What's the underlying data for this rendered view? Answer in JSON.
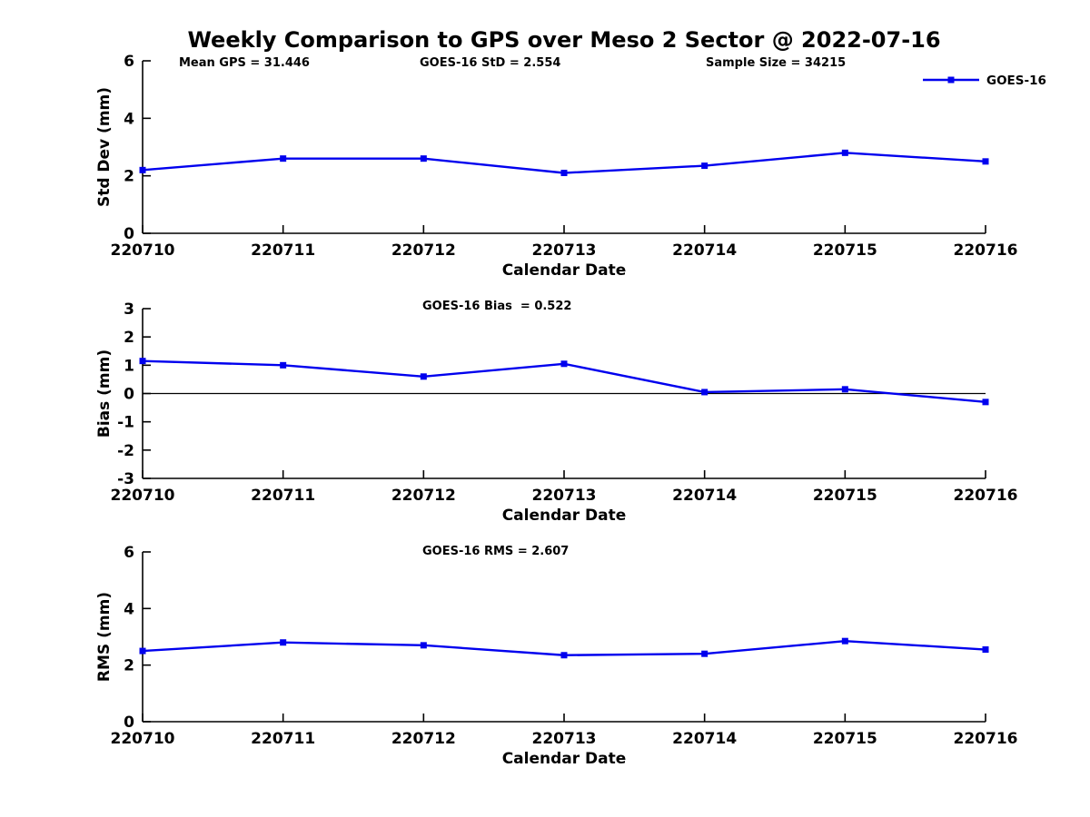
{
  "figure": {
    "title": "Weekly Comparison to GPS over Meso 2 Sector @ 2022-07-16",
    "background": "#ffffff",
    "line_color": "#0000EE",
    "axis_color": "#000000",
    "legend": {
      "label": "GOES-16"
    }
  },
  "chart_data": [
    {
      "type": "line",
      "name": "std-dev",
      "annotations": [
        "Mean GPS = 31.446",
        "GOES-16 StD = 2.554",
        "Sample Size = 34215"
      ],
      "categories": [
        "220710",
        "220711",
        "220712",
        "220713",
        "220714",
        "220715",
        "220716"
      ],
      "series": [
        {
          "name": "GOES-16",
          "values": [
            2.2,
            2.6,
            2.6,
            2.1,
            2.35,
            2.8,
            2.5
          ]
        }
      ],
      "xlabel": "Calendar Date",
      "ylabel": "Std Dev (mm)",
      "ylim": [
        0,
        6
      ],
      "yticks": [
        0,
        2,
        4,
        6
      ],
      "grid": false,
      "legend_entries": [
        "GOES-16"
      ],
      "legend_position": "top-right",
      "marker": "square"
    },
    {
      "type": "line",
      "name": "bias",
      "annotations": [
        "GOES-16 Bias  = 0.522"
      ],
      "categories": [
        "220710",
        "220711",
        "220712",
        "220713",
        "220714",
        "220715",
        "220716"
      ],
      "series": [
        {
          "name": "GOES-16",
          "values": [
            1.15,
            1.0,
            0.6,
            1.05,
            0.05,
            0.15,
            -0.3
          ]
        }
      ],
      "xlabel": "Calendar Date",
      "ylabel": "Bias (mm)",
      "ylim": [
        -3,
        3
      ],
      "yticks": [
        -3,
        -2,
        -1,
        0,
        1,
        2,
        3
      ],
      "grid": false,
      "zero_line": true,
      "marker": "square"
    },
    {
      "type": "line",
      "name": "rms",
      "annotations": [
        "GOES-16 RMS = 2.607"
      ],
      "categories": [
        "220710",
        "220711",
        "220712",
        "220713",
        "220714",
        "220715",
        "220716"
      ],
      "series": [
        {
          "name": "GOES-16",
          "values": [
            2.5,
            2.8,
            2.7,
            2.35,
            2.4,
            2.85,
            2.55
          ]
        }
      ],
      "xlabel": "Calendar Date",
      "ylabel": "RMS (mm)",
      "ylim": [
        0,
        6
      ],
      "yticks": [
        0,
        2,
        4,
        6
      ],
      "grid": false,
      "marker": "square"
    }
  ]
}
